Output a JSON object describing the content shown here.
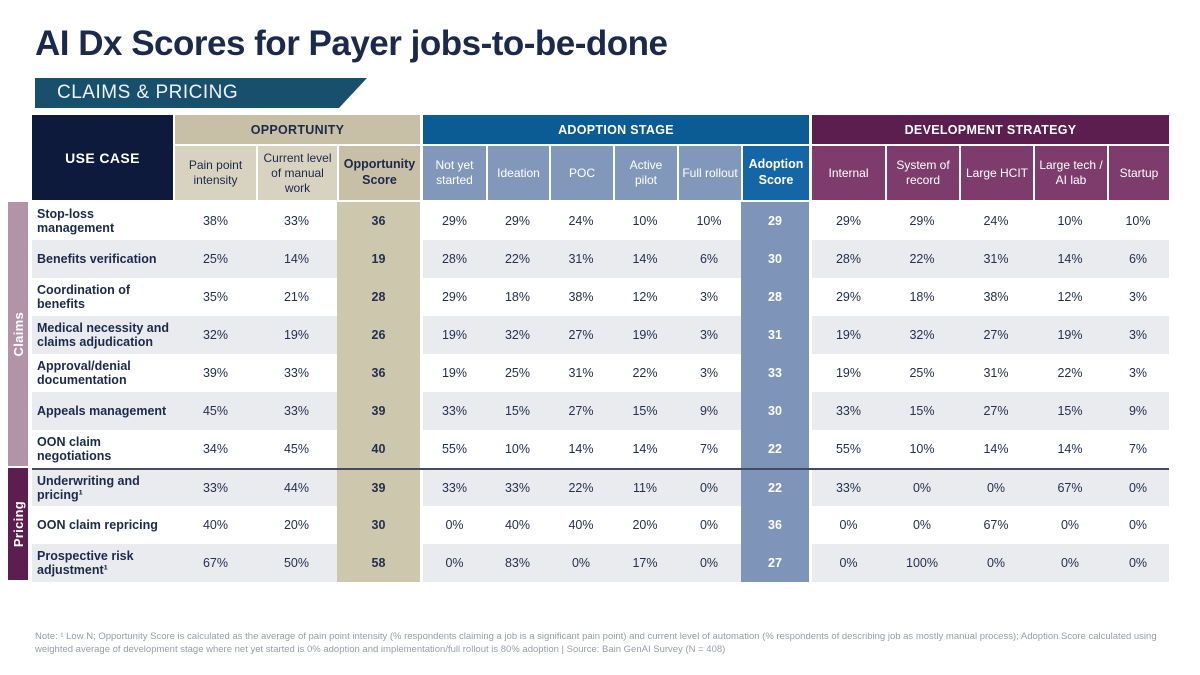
{
  "header": {
    "title": "AI Dx Scores for Payer jobs-to-be-done",
    "banner": "CLAIMS & PRICING"
  },
  "colors": {
    "title_navy": "#1b294b",
    "banner_teal": "#174f6c",
    "use_case_header_bg": "#0e1a3c",
    "opportunity_tan": "#c7c0a6",
    "opportunity_sub_tan": "#d8d3c1",
    "opportunity_score_col": "#cdc7ae",
    "adoption_blue": "#0b5b95",
    "adoption_sub_blue": "#8298ba",
    "adoption_score_header": "#1566a6",
    "adoption_score_col": "#7e94b8",
    "development_purple": "#5b1e4e",
    "development_sub_purple": "#7d3c6c",
    "claims_bar": "#b293a7",
    "pricing_bar": "#5b1e4e",
    "row_stripe": "#e9ebee"
  },
  "table": {
    "use_case_header": "USE CASE",
    "groups": [
      {
        "label": "OPPORTUNITY",
        "columns": [
          "Pain point intensity",
          "Current level of manual work",
          "Opportunity Score"
        ]
      },
      {
        "label": "ADOPTION STAGE",
        "columns": [
          "Not yet started",
          "Ideation",
          "POC",
          "Active pilot",
          "Full rollout",
          "Adoption Score"
        ]
      },
      {
        "label": "DEVELOPMENT STRATEGY",
        "columns": [
          "Internal",
          "System of record",
          "Large HCIT",
          "Large tech / AI lab",
          "Startup"
        ]
      }
    ],
    "row_groups": [
      {
        "label": "Claims",
        "rows": [
          {
            "use_case": "Stop-loss management",
            "opportunity": [
              "38%",
              "33%"
            ],
            "opportunity_score": "36",
            "adoption": [
              "29%",
              "29%",
              "24%",
              "10%",
              "10%"
            ],
            "adoption_score": "29",
            "development": [
              "29%",
              "29%",
              "24%",
              "10%",
              "10%"
            ]
          },
          {
            "use_case": "Benefits verification",
            "opportunity": [
              "25%",
              "14%"
            ],
            "opportunity_score": "19",
            "adoption": [
              "28%",
              "22%",
              "31%",
              "14%",
              "6%"
            ],
            "adoption_score": "30",
            "development": [
              "28%",
              "22%",
              "31%",
              "14%",
              "6%"
            ]
          },
          {
            "use_case": "Coordination of benefits",
            "opportunity": [
              "35%",
              "21%"
            ],
            "opportunity_score": "28",
            "adoption": [
              "29%",
              "18%",
              "38%",
              "12%",
              "3%"
            ],
            "adoption_score": "28",
            "development": [
              "29%",
              "18%",
              "38%",
              "12%",
              "3%"
            ]
          },
          {
            "use_case": "Medical necessity and claims adjudication",
            "opportunity": [
              "32%",
              "19%"
            ],
            "opportunity_score": "26",
            "adoption": [
              "19%",
              "32%",
              "27%",
              "19%",
              "3%"
            ],
            "adoption_score": "31",
            "development": [
              "19%",
              "32%",
              "27%",
              "19%",
              "3%"
            ]
          },
          {
            "use_case": "Approval/denial documentation",
            "opportunity": [
              "39%",
              "33%"
            ],
            "opportunity_score": "36",
            "adoption": [
              "19%",
              "25%",
              "31%",
              "22%",
              "3%"
            ],
            "adoption_score": "33",
            "development": [
              "19%",
              "25%",
              "31%",
              "22%",
              "3%"
            ]
          },
          {
            "use_case": "Appeals management",
            "opportunity": [
              "45%",
              "33%"
            ],
            "opportunity_score": "39",
            "adoption": [
              "33%",
              "15%",
              "27%",
              "15%",
              "9%"
            ],
            "adoption_score": "30",
            "development": [
              "33%",
              "15%",
              "27%",
              "15%",
              "9%"
            ]
          },
          {
            "use_case": "OON claim negotiations",
            "opportunity": [
              "34%",
              "45%"
            ],
            "opportunity_score": "40",
            "adoption": [
              "55%",
              "10%",
              "14%",
              "14%",
              "7%"
            ],
            "adoption_score": "22",
            "development": [
              "55%",
              "10%",
              "14%",
              "14%",
              "7%"
            ]
          }
        ]
      },
      {
        "label": "Pricing",
        "rows": [
          {
            "use_case": "Underwriting and pricing¹",
            "opportunity": [
              "33%",
              "44%"
            ],
            "opportunity_score": "39",
            "adoption": [
              "33%",
              "33%",
              "22%",
              "11%",
              "0%"
            ],
            "adoption_score": "22",
            "development": [
              "33%",
              "0%",
              "0%",
              "67%",
              "0%"
            ]
          },
          {
            "use_case": "OON claim repricing",
            "opportunity": [
              "40%",
              "20%"
            ],
            "opportunity_score": "30",
            "adoption": [
              "0%",
              "40%",
              "40%",
              "20%",
              "0%"
            ],
            "adoption_score": "36",
            "development": [
              "0%",
              "0%",
              "67%",
              "0%",
              "0%"
            ]
          },
          {
            "use_case": "Prospective risk adjustment¹",
            "opportunity": [
              "67%",
              "50%"
            ],
            "opportunity_score": "58",
            "adoption": [
              "0%",
              "83%",
              "0%",
              "17%",
              "0%"
            ],
            "adoption_score": "27",
            "development": [
              "0%",
              "100%",
              "0%",
              "0%",
              "0%"
            ]
          }
        ]
      }
    ]
  },
  "footnote": "Note: ¹ Low N; Opportunity Score is calculated as the average of pain point intensity (% respondents claiming a job is a significant pain point) and current level of automation (% respondents of describing job as mostly manual process); Adoption Score calculated using weighted average of development stage where net yet started is 0% adoption and implementation/full rollout is 80% adoption | Source: Bain GenAI Survey (N = 408)"
}
